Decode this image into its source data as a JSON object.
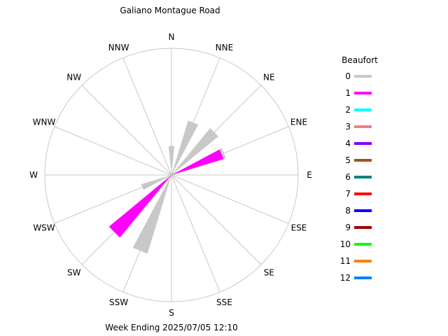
{
  "chart_data": {
    "type": "wind-rose",
    "title": "Galiano Montague Road",
    "footer": "Week Ending 2025/07/05 12:10",
    "directions": [
      "N",
      "NNE",
      "NE",
      "ENE",
      "E",
      "ESE",
      "SE",
      "SSE",
      "S",
      "SSW",
      "SW",
      "WSW",
      "W",
      "WNW",
      "NW",
      "NNW"
    ],
    "legend_title": "Beaufort",
    "legend": [
      {
        "label": "0",
        "color": "#c8c8c8"
      },
      {
        "label": "1",
        "color": "#ff00ff"
      },
      {
        "label": "2",
        "color": "#00ffff"
      },
      {
        "label": "3",
        "color": "#f08080"
      },
      {
        "label": "4",
        "color": "#8000ff"
      },
      {
        "label": "5",
        "color": "#a0522d"
      },
      {
        "label": "6",
        "color": "#008080"
      },
      {
        "label": "7",
        "color": "#ff0000"
      },
      {
        "label": "8",
        "color": "#0000ff"
      },
      {
        "label": "9",
        "color": "#a00000"
      },
      {
        "label": "10",
        "color": "#00ff00"
      },
      {
        "label": "11",
        "color": "#ff8000"
      },
      {
        "label": "12",
        "color": "#0080ff"
      }
    ],
    "radial_max": 1.0,
    "series": [
      {
        "name": "0",
        "values": [
          0.23,
          0.45,
          0.48,
          0.45,
          0.0,
          0.0,
          0.0,
          0.0,
          0.0,
          0.65,
          0.3,
          0.25,
          0.0,
          0.0,
          0.0,
          0.0
        ]
      },
      {
        "name": "1",
        "values": [
          0.0,
          0.0,
          0.0,
          0.43,
          0.0,
          0.0,
          0.0,
          0.0,
          0.0,
          0.0,
          0.64,
          0.0,
          0.0,
          0.0,
          0.0,
          0.0
        ]
      }
    ]
  }
}
